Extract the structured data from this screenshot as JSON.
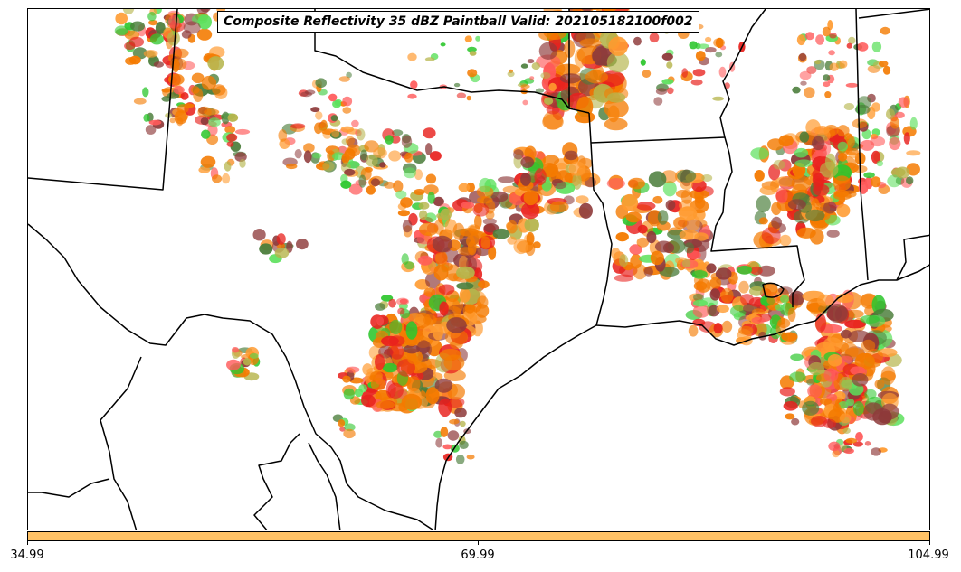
{
  "title": "Composite Reflectivity 35 dBZ Paintball Valid: 202105182100f002",
  "colorbar": {
    "color": "#ffc266",
    "ticks": [
      "34.99",
      "69.99",
      "104.99"
    ]
  },
  "palette": {
    "orange": "#f47a00",
    "light_orange": "#ff9a2e",
    "red": "#e8211d",
    "pink_red": "#ff5a5a",
    "green": "#2ec72e",
    "light_green": "#5be05b",
    "dark_green": "#4a7d3a",
    "olive": "#b5b44a",
    "maroon": "#8e3a3a",
    "boundary": "#000000"
  },
  "map_features": [
    "state-borders",
    "coastline",
    "international-border",
    "storm-paintball-echoes"
  ]
}
